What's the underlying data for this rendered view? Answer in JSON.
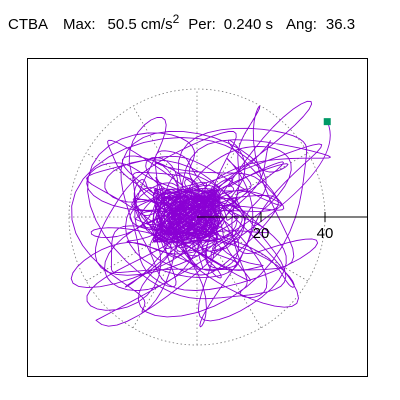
{
  "header": {
    "station": "CTBA",
    "max_label": "Max:",
    "max_value": "50.5",
    "max_unit": "cm/s",
    "max_unit_exponent": "2",
    "period_label": "Per:",
    "period_value": "0.240 s",
    "angle_label": "Ang:",
    "angle_value": "36.3"
  },
  "chart_data": {
    "type": "scatter",
    "description_free": true,
    "plot": "particle-motion hodogram",
    "xlim": [
      -66,
      66
    ],
    "ylim": [
      -66,
      66
    ],
    "radial_ticks": [
      20,
      40
    ],
    "tick_labels": [
      "20",
      "40"
    ],
    "grid": "polar-dotted",
    "grid_radius": 40,
    "trace_color": "#8a00d4",
    "marker_color": "#009966",
    "end_point": [
      40.7,
      29.8
    ],
    "peak_amplitude": 50.5
  }
}
